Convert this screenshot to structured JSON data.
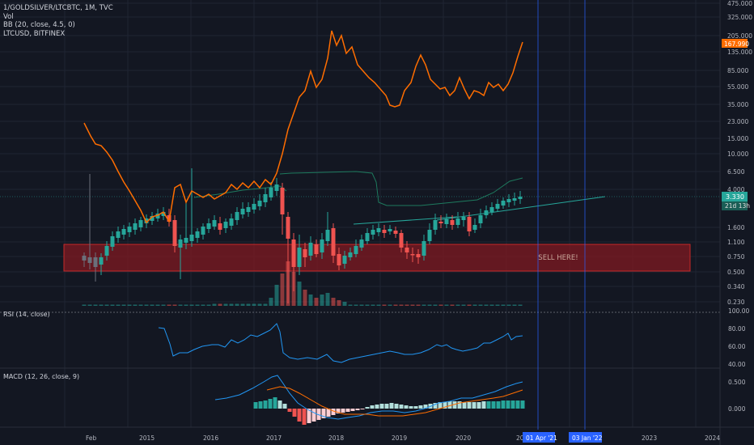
{
  "header": {
    "symbol_line": "1/GOLDSILVER/LTCBTC, 1M, TVC",
    "vol_label": "Vol",
    "bb_label": "BB (20, close, 4.5, 0)",
    "overlay_label": "LTCUSD, BITFINEX"
  },
  "price_axis": {
    "ticks": [
      "475.000",
      "325.000",
      "205.000",
      "135.000",
      "85.000",
      "55.000",
      "35.000",
      "23.000",
      "15.000",
      "10.000",
      "6.500",
      "4.000",
      "1.600",
      "1.100",
      "0.750",
      "0.500",
      "0.340",
      "0.230"
    ],
    "current_value": "3.330",
    "countdown": "21d 13h",
    "overlay_value": "167.990"
  },
  "zone": {
    "label": "SELL HERE!"
  },
  "rsi": {
    "label": "RSI (14, close)",
    "ticks": [
      "100.00",
      "80.00",
      "60.00",
      "40.00"
    ]
  },
  "macd": {
    "label": "MACD (12, 26, close, 9)",
    "ticks": [
      "0.500",
      "0.000"
    ]
  },
  "time_axis": {
    "labels": [
      "Feb",
      "2015",
      "2016",
      "2017",
      "2018",
      "2019",
      "2020",
      "20"
    ],
    "future_labels": [
      "2023",
      "2024"
    ],
    "marker_1": "01 Apr '21",
    "marker_2": "03 Jan '22"
  },
  "colors": {
    "background": "#131722",
    "up": "#26a69a",
    "down": "#ef5350",
    "overlay_line": "#ff6d00",
    "bb_band": "#1e7a5e",
    "rsi_line": "#2196f3",
    "macd_line": "#2196f3",
    "signal_line": "#ff6d00",
    "zone": "#801922",
    "marker": "#2962ff"
  },
  "chart_data": {
    "type": "candlestick",
    "series": [
      {
        "name": "1/GOLDSILVER/LTCBTC"
      },
      {
        "name": "LTCUSD, BITFINEX"
      }
    ],
    "last_value": 3.33,
    "overlay_last_value": 167.99
  }
}
